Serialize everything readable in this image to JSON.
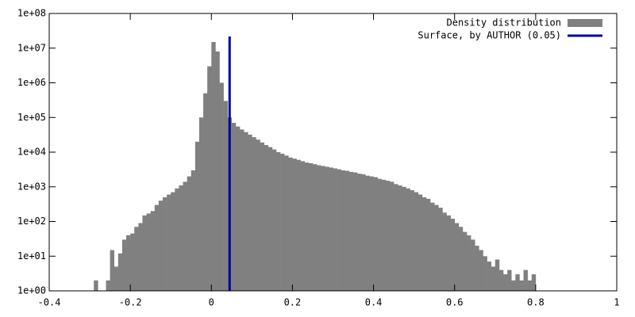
{
  "chart_data": {
    "type": "histogram",
    "bins": [
      -0.29,
      -0.28,
      -0.27,
      -0.26,
      -0.25,
      -0.24,
      -0.23,
      -0.22,
      -0.21,
      -0.2,
      -0.19,
      -0.18,
      -0.17,
      -0.16,
      -0.15,
      -0.14,
      -0.13,
      -0.12,
      -0.11,
      -0.1,
      -0.09,
      -0.08,
      -0.07,
      -0.06,
      -0.05,
      -0.04,
      -0.03,
      -0.02,
      -0.01,
      0,
      0.01,
      0.02,
      0.03,
      0.04,
      0.05,
      0.06,
      0.07,
      0.08,
      0.09,
      0.1,
      0.11,
      0.12,
      0.13,
      0.14,
      0.15,
      0.16,
      0.17,
      0.18,
      0.19,
      0.2,
      0.21,
      0.22,
      0.23,
      0.24,
      0.25,
      0.26,
      0.27,
      0.28,
      0.29,
      0.3,
      0.31,
      0.32,
      0.33,
      0.34,
      0.35,
      0.36,
      0.37,
      0.38,
      0.39,
      0.4,
      0.41,
      0.42,
      0.43,
      0.44,
      0.45,
      0.46,
      0.47,
      0.48,
      0.49,
      0.5,
      0.51,
      0.52,
      0.53,
      0.54,
      0.55,
      0.56,
      0.57,
      0.58,
      0.59,
      0.6,
      0.61,
      0.62,
      0.63,
      0.64,
      0.65,
      0.66,
      0.67,
      0.68,
      0.69,
      0.7,
      0.71,
      0.72,
      0.73,
      0.74,
      0.75,
      0.76,
      0.77,
      0.78,
      0.79,
      0.8
    ],
    "series": [
      {
        "name": "Density distribution",
        "color": "#808080",
        "values": [
          2,
          0,
          0,
          2,
          15,
          5,
          12,
          30,
          40,
          45,
          70,
          90,
          150,
          170,
          200,
          300,
          400,
          500,
          600,
          700,
          900,
          1100,
          1400,
          2000,
          3000,
          20000,
          100000,
          500000,
          3000000,
          15000000,
          8000000,
          1000000,
          300000,
          100000,
          70000,
          55000,
          45000,
          38000,
          32000,
          27000,
          23000,
          19000,
          16000,
          14000,
          12000,
          10000,
          9000,
          8000,
          7000,
          6500,
          6000,
          5500,
          5000,
          4800,
          4500,
          4200,
          4000,
          3800,
          3600,
          3400,
          3200,
          3000,
          2900,
          2700,
          2600,
          2400,
          2300,
          2100,
          2000,
          1900,
          1700,
          1600,
          1500,
          1400,
          1200,
          1100,
          1000,
          900,
          800,
          700,
          600,
          500,
          450,
          350,
          300,
          250,
          180,
          150,
          120,
          90,
          70,
          50,
          40,
          30,
          20,
          15,
          10,
          7,
          5,
          8,
          4,
          3,
          4,
          2,
          3,
          2,
          4,
          2,
          3
        ]
      },
      {
        "name": "Surface, by AUTHOR (0.05)",
        "color": "#0000a0",
        "x": 0.045
      }
    ],
    "xlim": [
      -0.4,
      1
    ],
    "xticks": [
      -0.4,
      -0.2,
      0,
      0.2,
      0.4,
      0.6,
      0.8,
      1
    ],
    "ylim": [
      1,
      100000000
    ],
    "log_y": true,
    "yticks": [
      {
        "value": 1,
        "label": "1e+00"
      },
      {
        "value": 10,
        "label": "1e+01"
      },
      {
        "value": 100,
        "label": "1e+02"
      },
      {
        "value": 1000,
        "label": "1e+03"
      },
      {
        "value": 10000,
        "label": "1e+04"
      },
      {
        "value": 100000,
        "label": "1e+05"
      },
      {
        "value": 1000000,
        "label": "1e+06"
      },
      {
        "value": 10000000,
        "label": "1e+07"
      },
      {
        "value": 100000000,
        "label": "1e+08"
      }
    ],
    "legend": "upper-right"
  }
}
